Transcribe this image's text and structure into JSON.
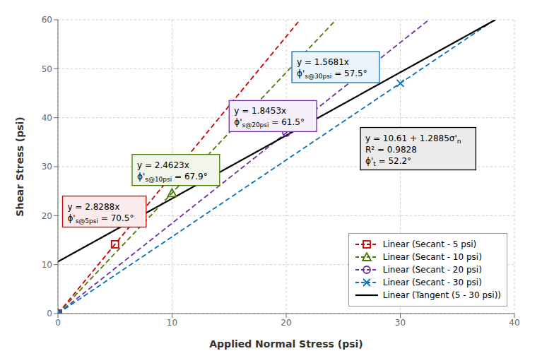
{
  "chart_data": {
    "type": "line",
    "xlabel": "Applied Normal Stress (psi)",
    "ylabel": "Shear Stress (psi)",
    "xlim": [
      0,
      40
    ],
    "ylim": [
      0,
      60
    ],
    "xticks": [
      0,
      10,
      20,
      30,
      40
    ],
    "yticks": [
      0,
      10,
      20,
      30,
      40,
      50,
      60
    ],
    "grid": true,
    "legend": "lower right",
    "series": [
      {
        "name": "Linear (Secant - 5 psi)",
        "color": "#cc0000",
        "marker": "square",
        "line_style": "dashed",
        "x": [
          0,
          21.2104
        ],
        "values": [
          0,
          60
        ],
        "points": {
          "x": [
            0,
            5
          ],
          "values": [
            0,
            14.144
          ]
        },
        "annotation": {
          "x": 0.4,
          "y": 24.0,
          "lines": [
            [
              "y = 2.8288x"
            ],
            [
              "ϕ'",
              {
                "sub": "s@5psi"
              },
              " = 70.5°"
            ]
          ]
        }
      },
      {
        "name": "Linear (Secant - 10 psi)",
        "color": "#4a7c00",
        "marker": "triangle",
        "line_style": "dashed",
        "x": [
          0,
          24.3675
        ],
        "values": [
          0,
          60
        ],
        "points": {
          "x": [
            0,
            10
          ],
          "values": [
            0,
            24.623
          ]
        },
        "annotation": {
          "x": 6.5,
          "y": 32.5,
          "lines": [
            [
              "y = 2.4623x"
            ],
            [
              "ϕ'",
              {
                "sub": "s@10psi"
              },
              " = 67.9°"
            ]
          ]
        }
      },
      {
        "name": "Linear (Secant - 20 psi)",
        "color": "#7030a0",
        "marker": "circle",
        "line_style": "dashed",
        "x": [
          0,
          32.515
        ],
        "values": [
          0,
          60
        ],
        "points": {
          "x": [
            0,
            20
          ],
          "values": [
            0,
            36.906
          ]
        },
        "annotation": {
          "x": 15.0,
          "y": 43.5,
          "lines": [
            [
              "y = 1.8453x"
            ],
            [
              "ϕ'",
              {
                "sub": "s@20psi"
              },
              " = 61.5°"
            ]
          ]
        }
      },
      {
        "name": "Linear (Secant - 30 psi)",
        "color": "#0070c0",
        "marker": "x",
        "line_style": "dashed",
        "x": [
          0,
          38.2629
        ],
        "values": [
          0,
          60
        ],
        "points": {
          "x": [
            0,
            30
          ],
          "values": [
            0,
            47.043
          ]
        },
        "annotation": {
          "x": 20.5,
          "y": 53.5,
          "lines": [
            [
              "y = 1.5681x"
            ],
            [
              "ϕ'",
              {
                "sub": "s@30psi"
              },
              " = 57.5°"
            ]
          ]
        }
      },
      {
        "name": "Linear (Tangent (5 - 30 psi))",
        "color": "#000000",
        "line_style": "solid",
        "x": [
          0,
          38.3314
        ],
        "values": [
          10.61,
          60
        ],
        "annotation": {
          "x": 26.5,
          "y": 38.0,
          "lines": [
            [
              "y = 10.61 + 1.2885σ'",
              {
                "sub": "n"
              }
            ],
            [
              "R² = 0.9828"
            ],
            [
              "ϕ'",
              {
                "sub": "t"
              },
              " = 52.2°"
            ]
          ]
        }
      }
    ]
  }
}
